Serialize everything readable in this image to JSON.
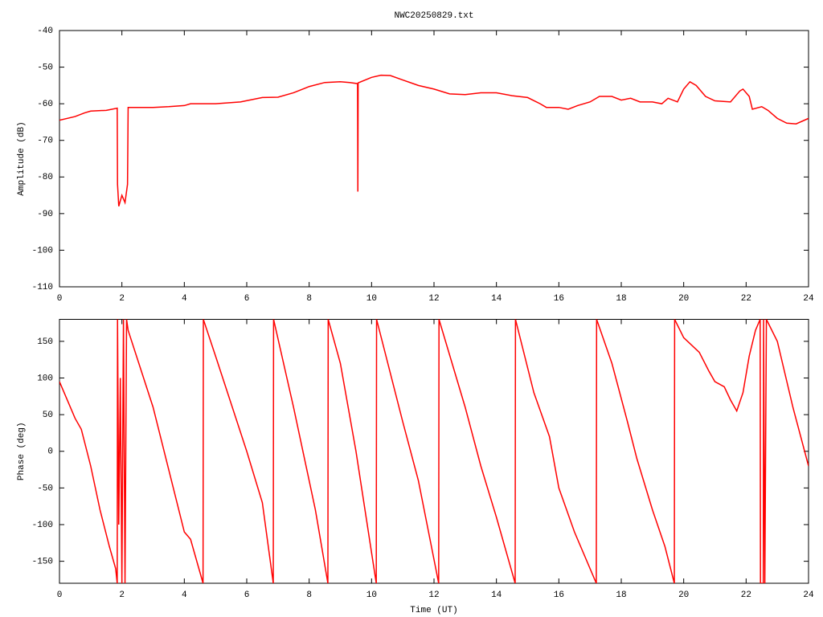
{
  "chart_data": [
    {
      "type": "line",
      "title": "NWC20250829.txt",
      "ylabel": "Amplitude (dB)",
      "color": "#ff0000",
      "xlim": [
        0,
        24
      ],
      "xticks": [
        0,
        2,
        4,
        6,
        8,
        10,
        12,
        14,
        16,
        18,
        20,
        22,
        24
      ],
      "ylim": [
        -110,
        -40
      ],
      "yticks": [
        -40,
        -50,
        -60,
        -70,
        -80,
        -90,
        -100,
        -110
      ],
      "x": [
        0,
        0.5,
        0.8,
        1.0,
        1.5,
        1.85,
        1.86,
        1.9,
        2.0,
        2.1,
        2.18,
        2.2,
        3,
        3.5,
        4,
        4.2,
        5,
        5.8,
        6.5,
        7,
        7.5,
        8,
        8.5,
        9,
        9.3,
        9.55,
        9.56,
        9.57,
        10,
        10.3,
        10.6,
        11,
        11.5,
        12,
        12.5,
        13,
        13.5,
        14,
        14.5,
        15,
        15.4,
        15.6,
        16,
        16.3,
        16.6,
        17,
        17.3,
        17.7,
        18,
        18.3,
        18.6,
        19,
        19.3,
        19.5,
        19.8,
        20,
        20.2,
        20.4,
        20.7,
        21,
        21.5,
        21.8,
        21.9,
        22.1,
        22.2,
        22.5,
        22.7,
        23,
        23.3,
        23.6,
        24
      ],
      "values": [
        -64.5,
        -63.5,
        -62.5,
        -62,
        -61.8,
        -61.2,
        -82,
        -88,
        -85,
        -87,
        -82,
        -61,
        -61,
        -60.8,
        -60.5,
        -60,
        -60,
        -59.5,
        -58.3,
        -58.2,
        -57,
        -55.3,
        -54.2,
        -54,
        -54.2,
        -54.5,
        -84,
        -54.3,
        -52.8,
        -52.2,
        -52.3,
        -53.5,
        -55,
        -56,
        -57.3,
        -57.5,
        -57,
        -57,
        -57.8,
        -58.3,
        -60,
        -61,
        -61,
        -61.5,
        -60.5,
        -59.5,
        -58,
        -58,
        -59,
        -58.5,
        -59.5,
        -59.5,
        -60,
        -58.5,
        -59.5,
        -56,
        -54,
        -55,
        -58,
        -59.2,
        -59.5,
        -56.5,
        -56,
        -58,
        -61.5,
        -60.8,
        -61.8,
        -64,
        -65.3,
        -65.5,
        -64
      ]
    },
    {
      "type": "line",
      "xlabel": "Time (UT)",
      "ylabel": "Phase (deg)",
      "color": "#ff0000",
      "xlim": [
        0,
        24
      ],
      "xticks": [
        0,
        2,
        4,
        6,
        8,
        10,
        12,
        14,
        16,
        18,
        20,
        22,
        24
      ],
      "ylim": [
        -180,
        180
      ],
      "yticks": [
        150,
        100,
        50,
        0,
        -50,
        -100,
        -150
      ],
      "x": [
        0,
        0.5,
        0.7,
        1.0,
        1.3,
        1.6,
        1.8,
        1.85,
        1.86,
        1.9,
        1.95,
        2.0,
        2.05,
        2.1,
        2.15,
        2.2,
        3,
        4,
        4.2,
        4.6,
        4.61,
        5,
        6,
        6.5,
        6.85,
        6.86,
        7.5,
        8.2,
        8.6,
        8.61,
        9,
        9.5,
        10.15,
        10.16,
        11,
        11.5,
        12.15,
        12.16,
        13,
        13.5,
        14,
        14.6,
        14.61,
        15.2,
        15.7,
        16,
        16.5,
        17.2,
        17.21,
        17.7,
        18.2,
        18.5,
        19,
        19.4,
        19.7,
        19.71,
        20,
        20.5,
        20.8,
        21,
        21.3,
        21.5,
        21.7,
        21.9,
        22.1,
        22.3,
        22.45,
        22.46,
        22.55,
        22.56,
        22.6,
        22.65,
        23,
        23.5,
        24
      ],
      "values": [
        95,
        45,
        30,
        -20,
        -80,
        -130,
        -160,
        -180,
        180,
        -100,
        100,
        -180,
        180,
        -180,
        180,
        165,
        60,
        -110,
        -120,
        -180,
        180,
        130,
        0,
        -70,
        -180,
        180,
        60,
        -80,
        -180,
        180,
        120,
        0,
        -180,
        180,
        40,
        -40,
        -180,
        180,
        60,
        -20,
        -90,
        -180,
        180,
        80,
        20,
        -50,
        -110,
        -180,
        180,
        120,
        40,
        -10,
        -80,
        -130,
        -180,
        180,
        155,
        135,
        110,
        95,
        88,
        70,
        55,
        80,
        130,
        165,
        180,
        -180,
        -180,
        180,
        -180,
        180,
        150,
        60,
        -20
      ]
    }
  ]
}
